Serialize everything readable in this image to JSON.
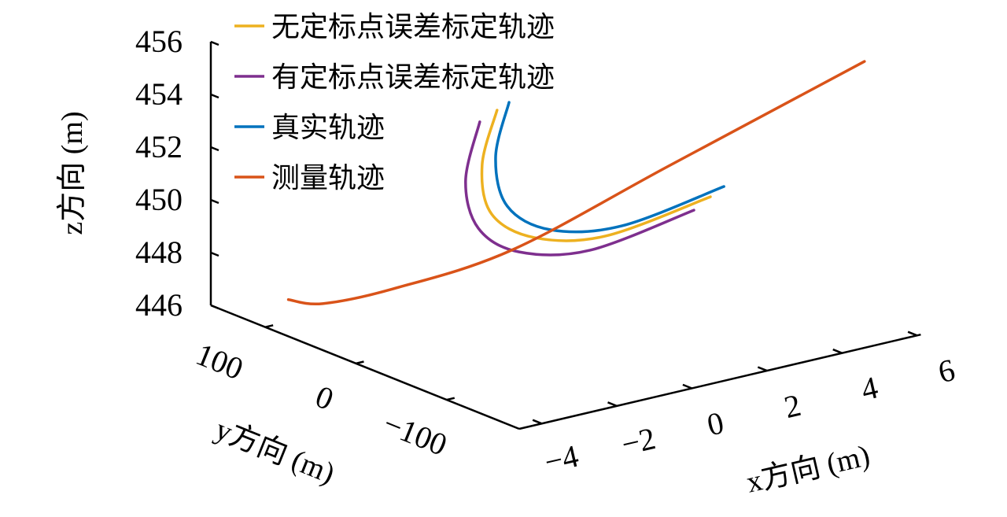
{
  "chart_data": {
    "type": "line",
    "projection": "3d",
    "title": "",
    "xlabel": "x方向 (m)",
    "ylabel": "y方向 (m)",
    "zlabel": "z方向 (m)",
    "xlim": [
      -4.6,
      6.1
    ],
    "ylim": [
      -180,
      160
    ],
    "zlim": [
      446,
      456
    ],
    "xticks": [
      -4,
      -2,
      0,
      2,
      4,
      6
    ],
    "yticks": [
      -100,
      0,
      100
    ],
    "zticks": [
      446,
      448,
      450,
      452,
      454,
      456
    ],
    "xtick_labels": [
      "−4",
      "−2",
      "0",
      "2",
      "4",
      "6"
    ],
    "ytick_labels": [
      "−100",
      "0",
      "100"
    ],
    "ztick_labels": [
      "446",
      "448",
      "450",
      "452",
      "454",
      "456"
    ],
    "grid": false,
    "legend_placement": "top-left",
    "series": [
      {
        "name": "无定标点误差标定轨迹",
        "color": "#EDB120",
        "x": [
          0.61,
          -0.03,
          -0.02,
          0.65,
          2.06,
          4.12
        ],
        "y": [
          60,
          50,
          40,
          20,
          0,
          -30
        ],
        "z": [
          453.04,
          451.3,
          449.59,
          448.74,
          448.61,
          449.82
        ]
      },
      {
        "name": "有定标点误差标定轨迹",
        "color": "#7E2F8E",
        "x": [
          0.15,
          -0.47,
          -0.37,
          0.23,
          1.64,
          3.68
        ],
        "y": [
          60,
          50,
          40,
          20,
          0,
          -30
        ],
        "z": [
          452.75,
          450.85,
          449.16,
          448.34,
          448.21,
          449.46
        ]
      },
      {
        "name": "真实轨迹",
        "color": "#0072BD",
        "x": [
          0.93,
          0.33,
          0.4,
          1.07,
          2.48,
          4.48
        ],
        "y": [
          60,
          50,
          40,
          20,
          0,
          -30
        ],
        "z": [
          453.23,
          451.48,
          449.74,
          448.9,
          448.85,
          450.09
        ]
      },
      {
        "name": "测量轨迹",
        "color": "#D95319",
        "x": [
          -3.5,
          -3.07,
          -1.92,
          0.02,
          2.77,
          6.05
        ],
        "y": [
          120,
          100,
          70,
          20,
          -40,
          -120
        ],
        "z": [
          446.4,
          446.38,
          446.97,
          448.47,
          451.58,
          455.55
        ]
      }
    ]
  }
}
